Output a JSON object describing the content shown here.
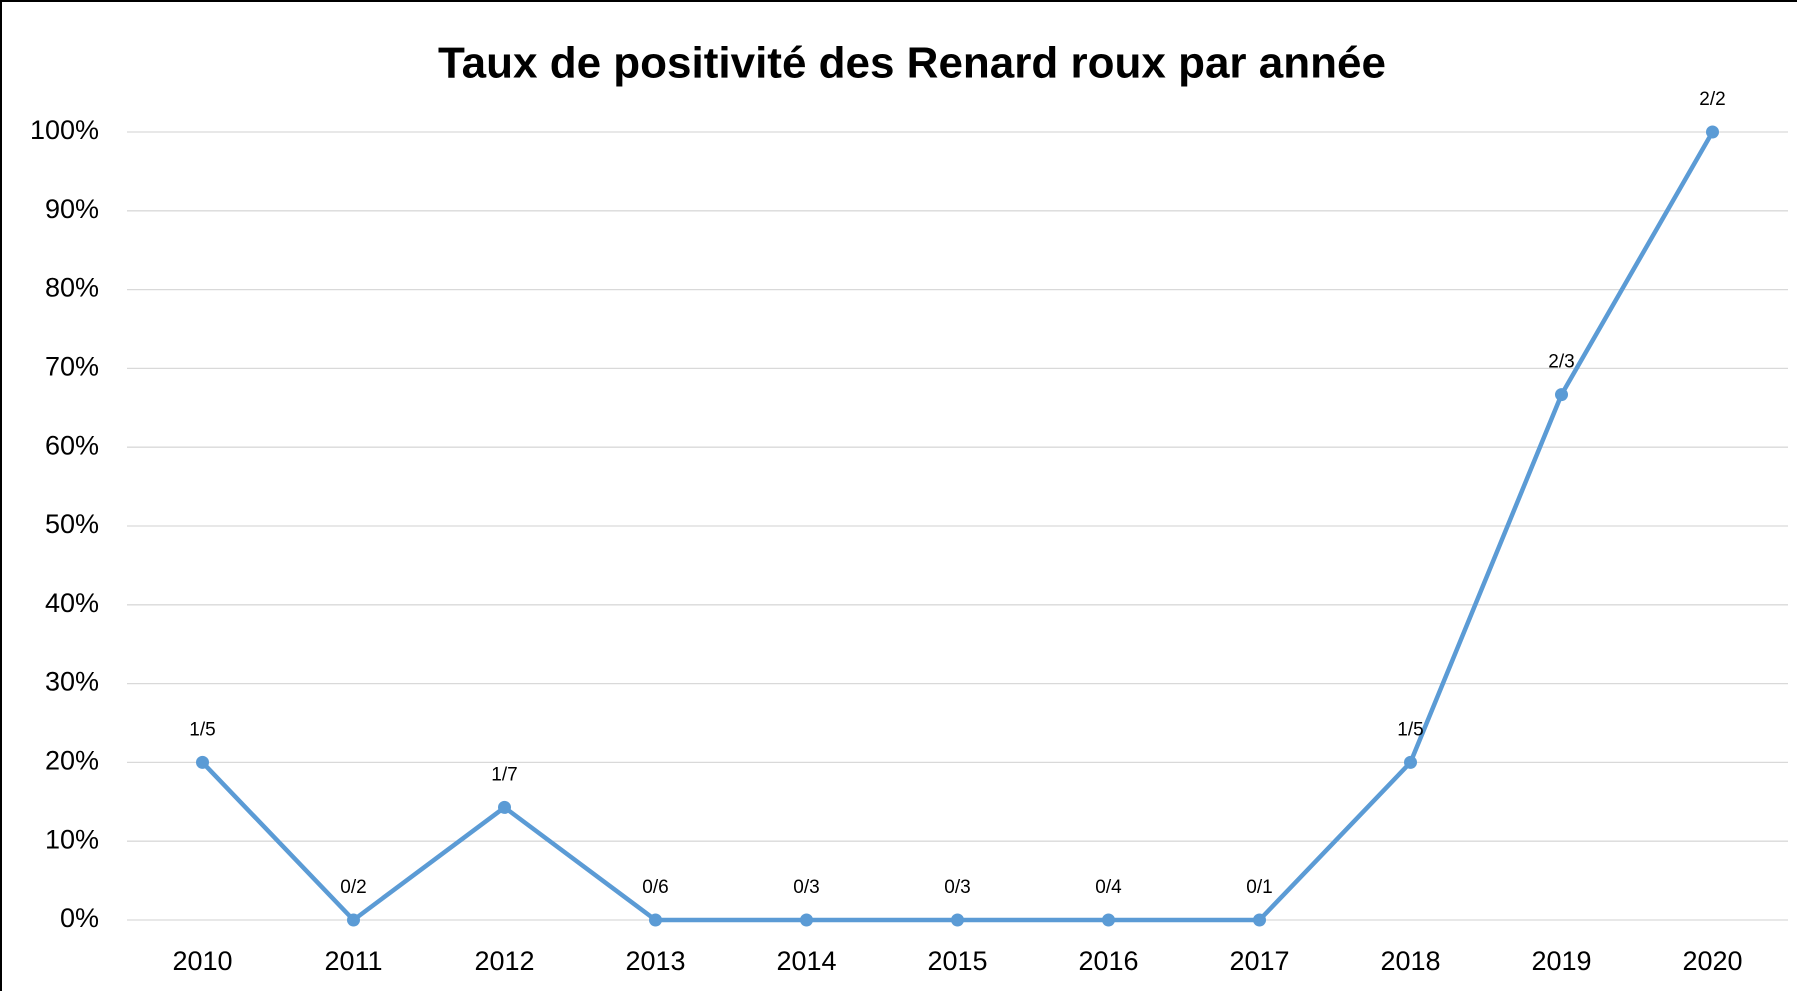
{
  "chart_data": {
    "type": "line",
    "title": "Taux de positivité des Renard roux par année",
    "categories": [
      "2010",
      "2011",
      "2012",
      "2013",
      "2014",
      "2015",
      "2016",
      "2017",
      "2018",
      "2019",
      "2020"
    ],
    "series": [
      {
        "name": "Taux de positivité",
        "color": "#5b9bd5",
        "values": [
          20,
          0,
          14.29,
          0,
          0,
          0,
          0,
          0,
          20,
          66.67,
          100
        ],
        "value_labels": [
          "1/5",
          "0/2",
          "1/7",
          "0/6",
          "0/3",
          "0/3",
          "0/4",
          "0/1",
          "1/5",
          "2/3",
          "2/2"
        ]
      }
    ],
    "ylim": [
      0,
      100
    ],
    "yticks": [
      {
        "value": 0,
        "label": "0%"
      },
      {
        "value": 10,
        "label": "10%"
      },
      {
        "value": 20,
        "label": "20%"
      },
      {
        "value": 30,
        "label": "30%"
      },
      {
        "value": 40,
        "label": "40%"
      },
      {
        "value": 50,
        "label": "50%"
      },
      {
        "value": 60,
        "label": "60%"
      },
      {
        "value": 70,
        "label": "70%"
      },
      {
        "value": 80,
        "label": "80%"
      },
      {
        "value": 90,
        "label": "90%"
      },
      {
        "value": 100,
        "label": "100%"
      }
    ],
    "grid": true
  }
}
